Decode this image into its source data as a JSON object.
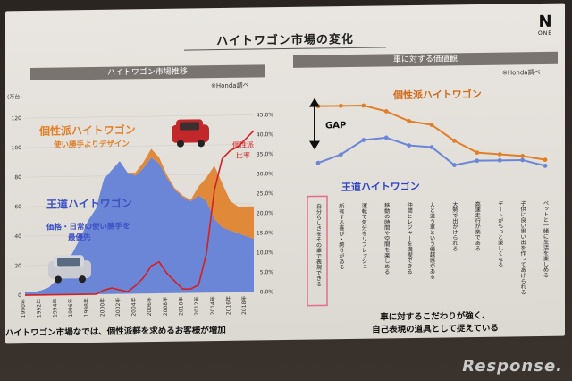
{
  "slide": {
    "title": "ハイトワゴン市場の変化",
    "logo_main": "N",
    "logo_sub": "ONE"
  },
  "left_panel": {
    "header": "ハイトワゴン市場推移",
    "source": "※Honda調べ",
    "y_unit": "(万台)",
    "label_kosei": "個性派ハイトワゴン",
    "label_kosei_sub": "使い勝手よりデザイン",
    "label_oudou": "王道ハイトワゴン",
    "label_oudou_sub1": "価格・日常の使い勝手を",
    "label_oudou_sub2": "最優先",
    "label_ratio1": "個性派",
    "label_ratio2": "比率",
    "caption": "ハイトワゴン市場なでは、個性派軽を求めるお客様が増加"
  },
  "right_panel": {
    "header": "車に対する価値観",
    "source": "※Honda調べ",
    "label_kosei": "個性派ハイトワゴン",
    "label_oudou": "王道ハイトワゴン",
    "gap_label": "GAP",
    "caption_line1": "車に対するこだわりが強く、",
    "caption_line2": "自己表現の道具として捉えている"
  },
  "watermark": "Response.",
  "colors": {
    "oudou": "#6b86d6",
    "kosei": "#e07f28",
    "ratio": "#d42020",
    "highlight": "#e46f8a"
  },
  "chart_data": [
    {
      "type": "area",
      "categories": [
        "1990",
        "1991",
        "1992",
        "1993",
        "1994",
        "1995",
        "1996",
        "1997",
        "1998",
        "1999",
        "2000",
        "2001",
        "2002",
        "2003",
        "2004",
        "2005",
        "2006",
        "2007",
        "2008",
        "2009",
        "2010",
        "2011",
        "2012",
        "2013",
        "2014",
        "2015",
        "2016",
        "2017",
        "2018",
        "2019"
      ],
      "x_tick_labels": [
        "1990年",
        "1992年",
        "1994年",
        "1996年",
        "1998年",
        "2000年",
        "2002年",
        "2004年",
        "2006年",
        "2008年",
        "2010年",
        "2012年",
        "2014年",
        "2016年",
        "2018年"
      ],
      "y_ticks": [
        "0",
        "20",
        "40",
        "60",
        "80",
        "100",
        "120"
      ],
      "y2_ticks": [
        "0.0%",
        "5.0%",
        "10.0%",
        "15.0%",
        "20.0%",
        "25.0%",
        "30.0%",
        "35.0%",
        "40.0%",
        "45.0%"
      ],
      "ylim": [
        0,
        120
      ],
      "y2lim": [
        0,
        45
      ],
      "series": [
        {
          "name": "王道ハイトワゴン",
          "values": [
            2,
            2,
            3,
            5,
            10,
            18,
            28,
            38,
            50,
            58,
            78,
            84,
            90,
            82,
            80,
            85,
            92,
            88,
            78,
            70,
            65,
            62,
            66,
            62,
            50,
            44,
            42,
            40,
            38,
            36
          ]
        },
        {
          "name": "個性派ハイトワゴン",
          "values": [
            0,
            0,
            0,
            0,
            0,
            0,
            0,
            0,
            0,
            0,
            0,
            0,
            0,
            0,
            2,
            4,
            6,
            4,
            2,
            1,
            1,
            1,
            6,
            16,
            36,
            30,
            20,
            18,
            20,
            22
          ]
        },
        {
          "name": "比率",
          "axis": "y2",
          "values": [
            0,
            0,
            0,
            0,
            0,
            0,
            0,
            0,
            0,
            0,
            1,
            1.5,
            1,
            0.5,
            2,
            4,
            7,
            8,
            5,
            3,
            1,
            1,
            2,
            10,
            26,
            34,
            36,
            37,
            39,
            41
          ]
        }
      ]
    },
    {
      "type": "line",
      "categories": [
        "自分らしさをその車で表現できる",
        "所有する喜び・誇りがある",
        "運転で気分をリフレッシュ",
        "移動の時間や空間を楽しめる",
        "仲間とレジャーを満喫できる",
        "人と違う車という優越感がある",
        "大勢で出かけられる",
        "高速走行が楽である",
        "デートがもっと楽しくなる",
        "子供に良い思い出を作ってあげられる",
        "ペットと一緒に生活を楽しめる"
      ],
      "ylim": [
        0,
        100
      ],
      "series": [
        {
          "name": "個性派ハイトワゴン",
          "values": [
            88,
            88,
            88,
            85,
            80,
            78,
            70,
            64,
            63,
            62,
            60
          ]
        },
        {
          "name": "王道ハイトワゴン",
          "values": [
            60,
            64,
            71,
            72,
            68,
            67,
            58,
            60,
            60,
            60,
            57
          ]
        }
      ]
    }
  ]
}
